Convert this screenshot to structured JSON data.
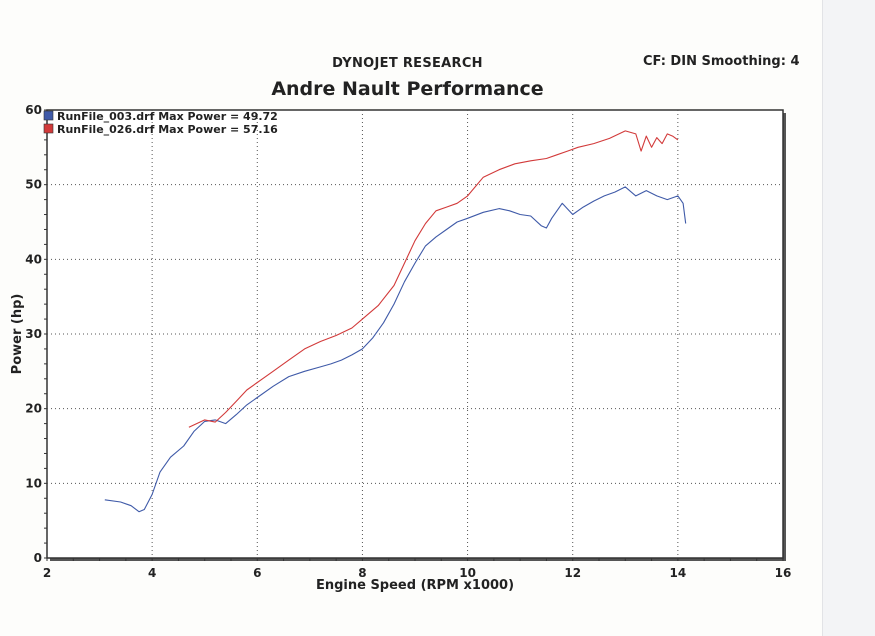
{
  "header": {
    "company": "DYNOJET RESEARCH",
    "title": "Andre Nault Performance",
    "cf_info": "CF: DIN  Smoothing: 4"
  },
  "chart_data": {
    "type": "line",
    "xlabel": "Engine Speed (RPM x1000)",
    "ylabel": "Power (hp)",
    "xlim": [
      2,
      16
    ],
    "ylim": [
      0,
      60
    ],
    "xticks": [
      2,
      4,
      6,
      8,
      10,
      12,
      14,
      16
    ],
    "yticks": [
      0,
      10,
      20,
      30,
      40,
      50,
      60
    ],
    "grid": true,
    "legend_position": "top-left",
    "series": [
      {
        "name": "RunFile_003.drf Max Power = 49.72",
        "color": "#3f5aa8",
        "x": [
          3.1,
          3.4,
          3.6,
          3.75,
          3.85,
          4.0,
          4.15,
          4.35,
          4.6,
          4.8,
          5.0,
          5.2,
          5.4,
          5.6,
          5.8,
          6.0,
          6.3,
          6.6,
          6.9,
          7.2,
          7.4,
          7.6,
          7.8,
          8.0,
          8.2,
          8.4,
          8.6,
          8.8,
          9.0,
          9.2,
          9.4,
          9.6,
          9.8,
          10.0,
          10.3,
          10.6,
          10.8,
          11.0,
          11.2,
          11.4,
          11.5,
          11.6,
          11.8,
          12.0,
          12.2,
          12.4,
          12.6,
          12.8,
          13.0,
          13.2,
          13.4,
          13.6,
          13.8,
          14.0,
          14.1,
          14.15
        ],
        "values": [
          7.8,
          7.5,
          7.0,
          6.2,
          6.5,
          8.5,
          11.5,
          13.5,
          15.0,
          17.0,
          18.3,
          18.5,
          18.0,
          19.2,
          20.5,
          21.5,
          23.0,
          24.3,
          25.0,
          25.6,
          26.0,
          26.5,
          27.2,
          28.0,
          29.5,
          31.5,
          34.0,
          37.0,
          39.5,
          41.8,
          43.0,
          44.0,
          45.0,
          45.5,
          46.3,
          46.8,
          46.5,
          46.0,
          45.8,
          44.5,
          44.2,
          45.5,
          47.5,
          46.0,
          47.0,
          47.8,
          48.5,
          49.0,
          49.7,
          48.5,
          49.2,
          48.5,
          48.0,
          48.5,
          47.5,
          44.8
        ]
      },
      {
        "name": "RunFile_026.drf Max Power = 57.16",
        "color": "#d23a3a",
        "x": [
          4.7,
          5.0,
          5.2,
          5.4,
          5.6,
          5.8,
          6.0,
          6.3,
          6.6,
          6.9,
          7.2,
          7.5,
          7.8,
          8.0,
          8.3,
          8.6,
          8.8,
          9.0,
          9.2,
          9.4,
          9.6,
          9.8,
          10.0,
          10.3,
          10.6,
          10.9,
          11.2,
          11.5,
          11.7,
          11.9,
          12.1,
          12.4,
          12.7,
          13.0,
          13.2,
          13.3,
          13.4,
          13.5,
          13.6,
          13.7,
          13.8,
          13.9,
          14.0
        ],
        "values": [
          17.5,
          18.5,
          18.2,
          19.5,
          21.0,
          22.5,
          23.5,
          25.0,
          26.5,
          28.0,
          29.0,
          29.8,
          30.8,
          32.0,
          33.8,
          36.5,
          39.5,
          42.5,
          44.8,
          46.5,
          47.0,
          47.5,
          48.5,
          51.0,
          52.0,
          52.8,
          53.2,
          53.5,
          54.0,
          54.5,
          55.0,
          55.5,
          56.2,
          57.2,
          56.8,
          54.5,
          56.5,
          55.0,
          56.3,
          55.5,
          56.8,
          56.5,
          56.0
        ]
      }
    ]
  }
}
